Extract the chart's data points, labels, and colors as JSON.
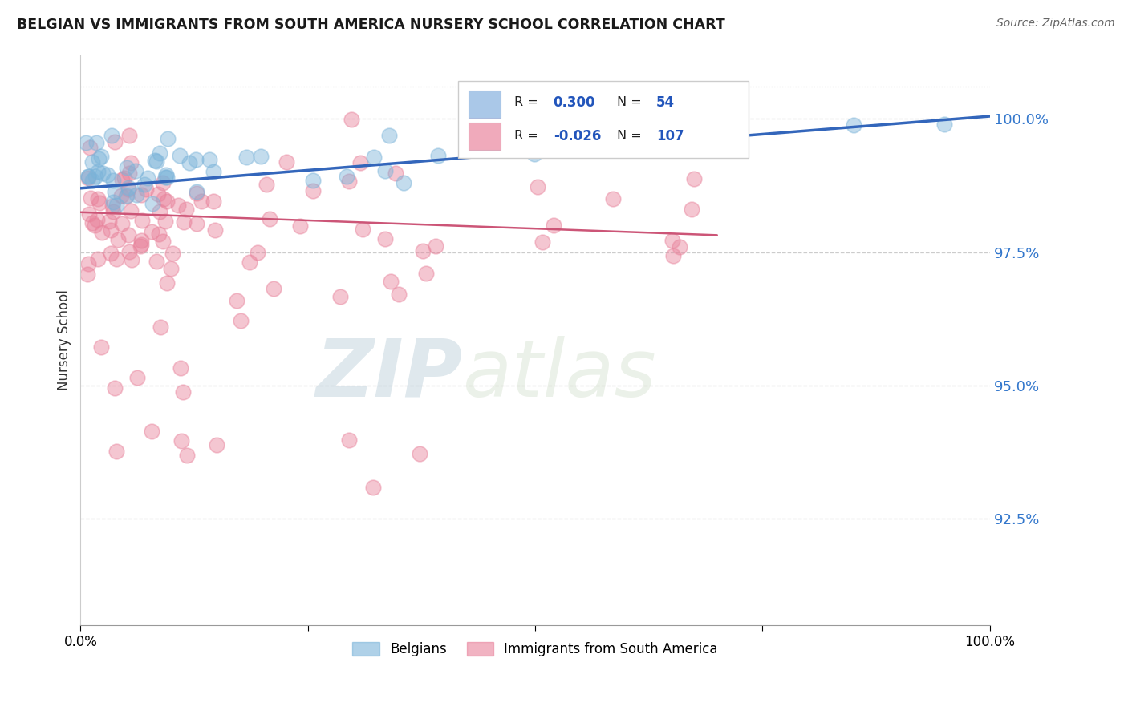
{
  "title": "BELGIAN VS IMMIGRANTS FROM SOUTH AMERICA NURSERY SCHOOL CORRELATION CHART",
  "source": "Source: ZipAtlas.com",
  "ylabel": "Nursery School",
  "xlim": [
    0.0,
    100.0
  ],
  "ylim": [
    90.5,
    101.2
  ],
  "yticks": [
    92.5,
    95.0,
    97.5,
    100.0
  ],
  "ytick_labels": [
    "92.5%",
    "95.0%",
    "97.5%",
    "100.0%"
  ],
  "R_belgian": 0.3,
  "N_belgian": 54,
  "R_immigrant": -0.026,
  "N_immigrant": 107,
  "belgian_color": "#7ab3d9",
  "immigrant_color": "#e8819a",
  "belgian_line_color": "#3366bb",
  "immigrant_line_color": "#cc5577",
  "legend_belgian_color": "#aac8e8",
  "legend_immigrant_color": "#f0aabb",
  "watermark_color": "#d0dce8",
  "background_color": "#ffffff",
  "seed_belgian": 42,
  "seed_immigrant": 77
}
